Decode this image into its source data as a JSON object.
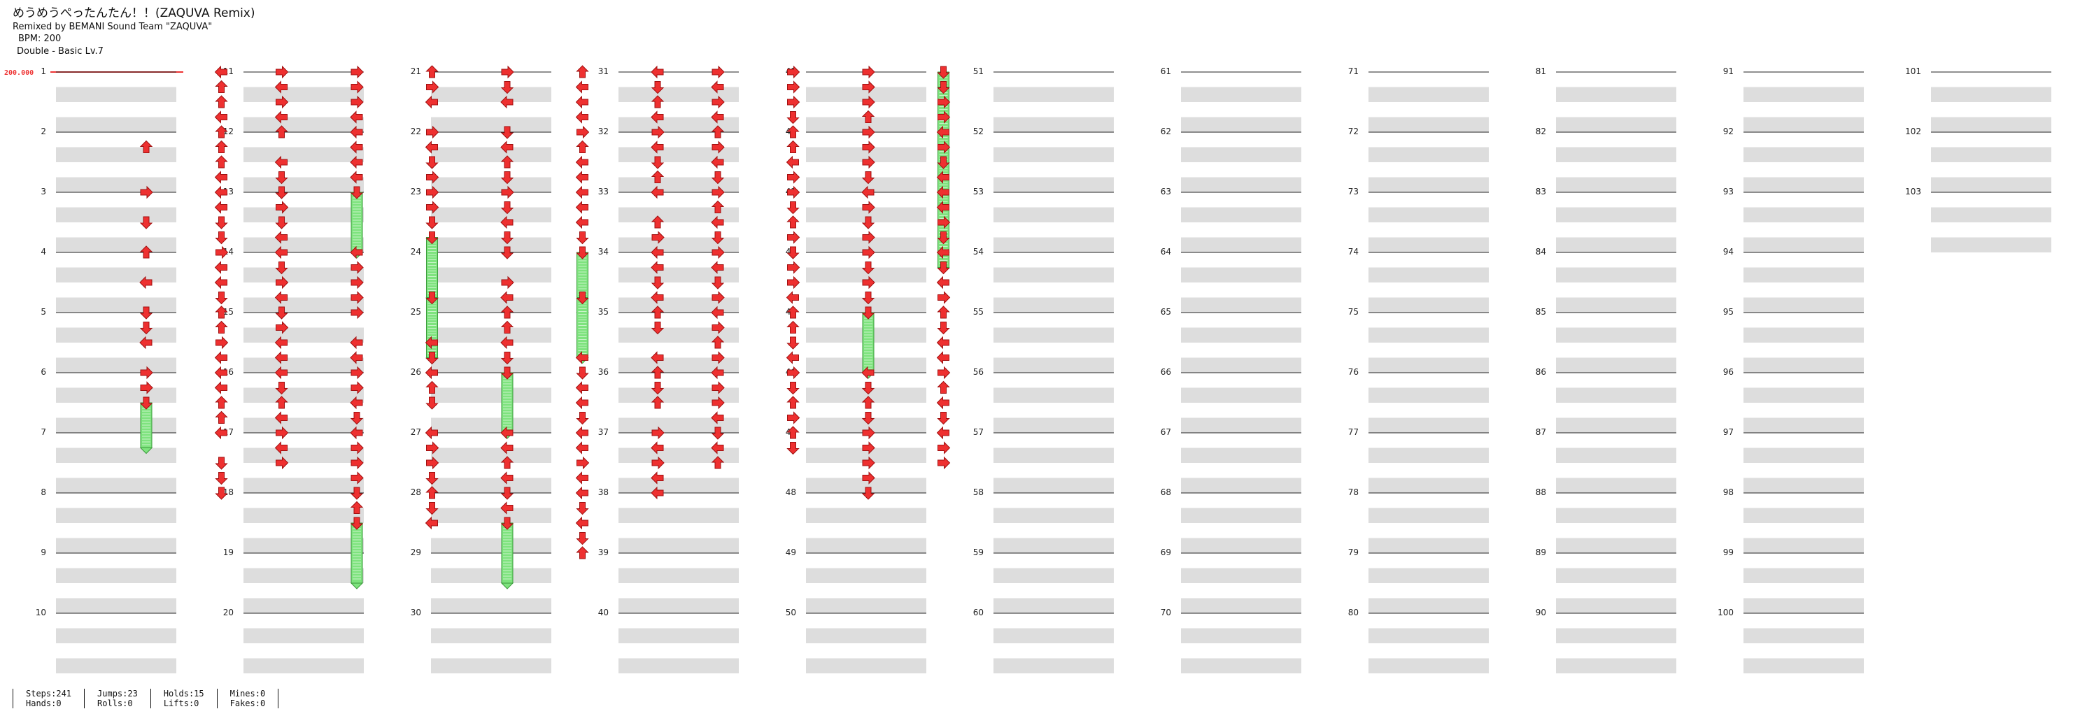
{
  "song": {
    "title": "めうめうぺったんたん！！(ZAQUVA Remix)",
    "artist": "Remixed by BEMANI Sound Team \"ZAQUVA\"",
    "bpm": "BPM: 200",
    "difficulty": "Double - Basic  Lv.7"
  },
  "bpm_marker": "200.000",
  "colors": {
    "arrow": "#ee3030",
    "hold": "#7ee37e",
    "band": "#dddddd"
  },
  "measure_numbers": [
    1,
    2,
    3,
    4,
    5,
    6,
    7,
    8,
    9,
    10,
    11,
    12,
    13,
    14,
    15,
    16,
    17,
    18,
    19,
    20,
    21,
    22,
    23,
    24,
    25,
    26,
    27,
    28,
    29,
    30,
    31,
    32,
    33,
    34,
    35,
    36,
    37,
    38,
    39,
    40,
    41,
    42,
    43,
    44,
    45,
    46,
    47,
    48,
    49,
    50,
    51,
    52,
    53,
    54,
    55,
    56,
    57,
    58,
    59,
    60,
    61,
    62,
    63,
    64,
    65,
    66,
    67,
    68,
    69,
    70,
    71,
    72,
    73,
    74,
    75,
    76,
    77,
    78,
    79,
    80,
    81,
    82,
    83,
    84,
    85,
    86,
    87,
    88,
    89,
    90,
    91,
    92,
    93,
    94,
    95,
    96,
    97,
    98,
    99,
    100,
    101,
    102,
    103
  ],
  "notes": [
    [
      6,
      6,
      "up"
    ],
    [
      6,
      9,
      "right"
    ],
    [
      6,
      11,
      "down"
    ],
    [
      6,
      13,
      "up"
    ],
    [
      6,
      15,
      "left"
    ],
    [
      6,
      17,
      "down"
    ],
    [
      6,
      18,
      "down"
    ],
    [
      6,
      19,
      "left"
    ],
    [
      6,
      21,
      "right"
    ],
    [
      6,
      22,
      "right"
    ],
    [
      6,
      23,
      "hold3"
    ],
    [
      11,
      1,
      "left"
    ],
    [
      11,
      2,
      "up"
    ],
    [
      11,
      3,
      "up"
    ],
    [
      11,
      4,
      "left"
    ],
    [
      11,
      5,
      "up"
    ],
    [
      11,
      6,
      "up"
    ],
    [
      11,
      7,
      "up"
    ],
    [
      11,
      8,
      "left"
    ],
    [
      11,
      9,
      "left"
    ],
    [
      11,
      10,
      "left"
    ],
    [
      11,
      11,
      "down"
    ],
    [
      11,
      12,
      "down"
    ],
    [
      11,
      13,
      "right"
    ],
    [
      11,
      14,
      "left"
    ],
    [
      11,
      15,
      "left"
    ],
    [
      11,
      16,
      "down"
    ],
    [
      11,
      17,
      "up"
    ],
    [
      11,
      18,
      "up"
    ],
    [
      11,
      19,
      "right"
    ],
    [
      11,
      20,
      "left"
    ],
    [
      11,
      21,
      "left"
    ],
    [
      11,
      22,
      "left"
    ],
    [
      11,
      23,
      "up"
    ],
    [
      11,
      24,
      "up"
    ],
    [
      11,
      25,
      "left"
    ],
    [
      11,
      27,
      "down"
    ],
    [
      11,
      28,
      "down"
    ],
    [
      11,
      29,
      "down"
    ],
    [
      15,
      1,
      "right"
    ],
    [
      15,
      2,
      "left"
    ],
    [
      15,
      3,
      "right"
    ],
    [
      15,
      4,
      "left"
    ],
    [
      15,
      5,
      "up"
    ],
    [
      15,
      7,
      "left"
    ],
    [
      15,
      8,
      "down"
    ],
    [
      15,
      9,
      "down"
    ],
    [
      15,
      10,
      "right"
    ],
    [
      15,
      11,
      "down"
    ],
    [
      15,
      12,
      "left"
    ],
    [
      15,
      13,
      "left"
    ],
    [
      15,
      14,
      "down"
    ],
    [
      15,
      15,
      "right"
    ],
    [
      15,
      16,
      "left"
    ],
    [
      15,
      17,
      "down"
    ],
    [
      15,
      18,
      "right"
    ],
    [
      15,
      19,
      "left"
    ],
    [
      15,
      20,
      "left"
    ],
    [
      15,
      21,
      "left"
    ],
    [
      15,
      22,
      "down"
    ],
    [
      15,
      23,
      "up"
    ],
    [
      15,
      24,
      "left"
    ],
    [
      15,
      25,
      "right"
    ],
    [
      15,
      26,
      "left"
    ],
    [
      15,
      27,
      "right"
    ],
    [
      20,
      1,
      "right"
    ],
    [
      20,
      2,
      "right"
    ],
    [
      20,
      3,
      "right"
    ],
    [
      20,
      4,
      "left"
    ],
    [
      20,
      5,
      "left"
    ],
    [
      20,
      6,
      "left"
    ],
    [
      20,
      7,
      "left"
    ],
    [
      20,
      8,
      "left"
    ],
    [
      20,
      9,
      "hold4"
    ],
    [
      20,
      13,
      "left"
    ],
    [
      20,
      14,
      "right"
    ],
    [
      20,
      15,
      "right"
    ],
    [
      20,
      16,
      "right"
    ],
    [
      20,
      17,
      "right"
    ],
    [
      20,
      19,
      "left"
    ],
    [
      20,
      20,
      "left"
    ],
    [
      20,
      21,
      "right"
    ],
    [
      20,
      22,
      "right"
    ],
    [
      20,
      23,
      "left"
    ],
    [
      20,
      24,
      "down"
    ],
    [
      20,
      25,
      "left"
    ],
    [
      20,
      26,
      "right"
    ],
    [
      20,
      27,
      "right"
    ],
    [
      20,
      28,
      "right"
    ],
    [
      20,
      29,
      "down"
    ],
    [
      20,
      30,
      "up"
    ],
    [
      20,
      31,
      "hold4"
    ],
    [
      25,
      1,
      "up"
    ],
    [
      25,
      2,
      "right"
    ],
    [
      25,
      3,
      "left"
    ],
    [
      25,
      5,
      "right"
    ],
    [
      25,
      6,
      "left"
    ],
    [
      25,
      7,
      "down"
    ],
    [
      25,
      8,
      "right"
    ],
    [
      25,
      9,
      "right"
    ],
    [
      25,
      10,
      "right"
    ],
    [
      25,
      11,
      "down"
    ],
    [
      25,
      12,
      "hold4"
    ],
    [
      25,
      16,
      "hold4"
    ],
    [
      25,
      19,
      "left"
    ],
    [
      25,
      20,
      "down"
    ],
    [
      25,
      21,
      "left"
    ],
    [
      25,
      22,
      "up"
    ],
    [
      25,
      23,
      "down"
    ],
    [
      25,
      25,
      "left"
    ],
    [
      25,
      26,
      "right"
    ],
    [
      25,
      27,
      "right"
    ],
    [
      25,
      28,
      "down"
    ],
    [
      25,
      29,
      "up"
    ],
    [
      25,
      30,
      "down"
    ],
    [
      25,
      31,
      "left"
    ],
    [
      30,
      1,
      "right"
    ],
    [
      30,
      2,
      "down"
    ],
    [
      30,
      3,
      "left"
    ],
    [
      30,
      5,
      "down"
    ],
    [
      30,
      6,
      "left"
    ],
    [
      30,
      7,
      "up"
    ],
    [
      30,
      8,
      "down"
    ],
    [
      30,
      9,
      "right"
    ],
    [
      30,
      10,
      "down"
    ],
    [
      30,
      11,
      "left"
    ],
    [
      30,
      12,
      "down"
    ],
    [
      30,
      13,
      "down"
    ],
    [
      30,
      15,
      "right"
    ],
    [
      30,
      16,
      "left"
    ],
    [
      30,
      17,
      "up"
    ],
    [
      30,
      18,
      "up"
    ],
    [
      30,
      19,
      "left"
    ],
    [
      30,
      20,
      "down"
    ],
    [
      30,
      21,
      "hold4"
    ],
    [
      30,
      25,
      "left"
    ],
    [
      30,
      26,
      "left"
    ],
    [
      30,
      27,
      "up"
    ],
    [
      30,
      28,
      "left"
    ],
    [
      30,
      29,
      "down"
    ],
    [
      30,
      30,
      "left"
    ],
    [
      30,
      31,
      "hold4"
    ],
    [
      35,
      1,
      "up"
    ],
    [
      35,
      2,
      "left"
    ],
    [
      35,
      3,
      "left"
    ],
    [
      35,
      4,
      "left"
    ],
    [
      35,
      5,
      "right"
    ],
    [
      35,
      6,
      "up"
    ],
    [
      35,
      7,
      "left"
    ],
    [
      35,
      8,
      "left"
    ],
    [
      35,
      9,
      "left"
    ],
    [
      35,
      10,
      "left"
    ],
    [
      35,
      11,
      "left"
    ],
    [
      35,
      12,
      "down"
    ],
    [
      35,
      13,
      "hold4"
    ],
    [
      35,
      16,
      "hold4"
    ],
    [
      35,
      20,
      "left"
    ],
    [
      35,
      21,
      "down"
    ],
    [
      35,
      22,
      "left"
    ],
    [
      35,
      23,
      "left"
    ],
    [
      35,
      24,
      "down"
    ],
    [
      35,
      25,
      "left"
    ],
    [
      35,
      26,
      "left"
    ],
    [
      35,
      27,
      "right"
    ],
    [
      35,
      28,
      "left"
    ],
    [
      35,
      29,
      "left"
    ],
    [
      35,
      30,
      "down"
    ],
    [
      35,
      31,
      "left"
    ],
    [
      35,
      32,
      "down"
    ],
    [
      35,
      33,
      "up"
    ],
    [
      40,
      1,
      "left"
    ],
    [
      40,
      2,
      "down"
    ],
    [
      40,
      3,
      "up"
    ],
    [
      40,
      4,
      "left"
    ],
    [
      40,
      5,
      "right"
    ],
    [
      40,
      6,
      "left"
    ],
    [
      40,
      7,
      "down"
    ],
    [
      40,
      8,
      "up"
    ],
    [
      40,
      9,
      "left"
    ],
    [
      40,
      11,
      "up"
    ],
    [
      40,
      12,
      "right"
    ],
    [
      40,
      13,
      "left"
    ],
    [
      40,
      14,
      "left"
    ],
    [
      40,
      15,
      "down"
    ],
    [
      40,
      16,
      "left"
    ],
    [
      40,
      17,
      "up"
    ],
    [
      40,
      18,
      "down"
    ],
    [
      40,
      20,
      "left"
    ],
    [
      40,
      21,
      "up"
    ],
    [
      40,
      22,
      "down"
    ],
    [
      40,
      23,
      "up"
    ],
    [
      40,
      25,
      "right"
    ],
    [
      40,
      26,
      "left"
    ],
    [
      40,
      27,
      "right"
    ],
    [
      40,
      28,
      "left"
    ],
    [
      40,
      29,
      "left"
    ],
    [
      44,
      1,
      "right"
    ],
    [
      44,
      2,
      "left"
    ],
    [
      44,
      3,
      "right"
    ],
    [
      44,
      4,
      "left"
    ],
    [
      44,
      5,
      "up"
    ],
    [
      44,
      6,
      "right"
    ],
    [
      44,
      7,
      "left"
    ],
    [
      44,
      8,
      "down"
    ],
    [
      44,
      9,
      "right"
    ],
    [
      44,
      10,
      "up"
    ],
    [
      44,
      11,
      "left"
    ],
    [
      44,
      12,
      "down"
    ],
    [
      44,
      13,
      "right"
    ],
    [
      44,
      14,
      "left"
    ],
    [
      44,
      15,
      "down"
    ],
    [
      44,
      16,
      "right"
    ],
    [
      44,
      17,
      "left"
    ],
    [
      44,
      18,
      "right"
    ],
    [
      44,
      19,
      "up"
    ],
    [
      44,
      20,
      "right"
    ],
    [
      44,
      21,
      "left"
    ],
    [
      44,
      22,
      "right"
    ],
    [
      44,
      23,
      "right"
    ],
    [
      44,
      24,
      "left"
    ],
    [
      44,
      25,
      "down"
    ],
    [
      44,
      26,
      "left"
    ],
    [
      44,
      27,
      "up"
    ],
    [
      49,
      1,
      "right"
    ],
    [
      49,
      2,
      "right"
    ],
    [
      49,
      3,
      "right"
    ],
    [
      49,
      4,
      "down"
    ],
    [
      49,
      5,
      "up"
    ],
    [
      49,
      6,
      "up"
    ],
    [
      49,
      7,
      "left"
    ],
    [
      49,
      8,
      "right"
    ],
    [
      49,
      9,
      "right"
    ],
    [
      49,
      10,
      "down"
    ],
    [
      49,
      11,
      "up"
    ],
    [
      49,
      12,
      "right"
    ],
    [
      49,
      13,
      "down"
    ],
    [
      49,
      14,
      "right"
    ],
    [
      49,
      15,
      "right"
    ],
    [
      49,
      16,
      "left"
    ],
    [
      49,
      17,
      "up"
    ],
    [
      49,
      18,
      "up"
    ],
    [
      49,
      19,
      "down"
    ],
    [
      49,
      20,
      "left"
    ],
    [
      49,
      21,
      "right"
    ],
    [
      49,
      22,
      "down"
    ],
    [
      49,
      23,
      "up"
    ],
    [
      49,
      24,
      "right"
    ],
    [
      49,
      25,
      "up"
    ],
    [
      49,
      26,
      "down"
    ],
    [
      54,
      1,
      "right"
    ],
    [
      54,
      2,
      "right"
    ],
    [
      54,
      3,
      "right"
    ],
    [
      54,
      4,
      "up"
    ],
    [
      54,
      5,
      "right"
    ],
    [
      54,
      6,
      "right"
    ],
    [
      54,
      7,
      "right"
    ],
    [
      54,
      8,
      "down"
    ],
    [
      54,
      9,
      "left"
    ],
    [
      54,
      10,
      "right"
    ],
    [
      54,
      11,
      "down"
    ],
    [
      54,
      12,
      "right"
    ],
    [
      54,
      13,
      "right"
    ],
    [
      54,
      14,
      "down"
    ],
    [
      54,
      15,
      "right"
    ],
    [
      54,
      16,
      "down"
    ],
    [
      54,
      17,
      "hold4"
    ],
    [
      54,
      21,
      "left"
    ],
    [
      54,
      22,
      "down"
    ],
    [
      54,
      23,
      "up"
    ],
    [
      54,
      24,
      "down"
    ],
    [
      54,
      25,
      "right"
    ],
    [
      54,
      26,
      "right"
    ],
    [
      54,
      27,
      "right"
    ],
    [
      54,
      28,
      "right"
    ],
    [
      54,
      29,
      "down"
    ],
    [
      59,
      1,
      "hold12"
    ],
    [
      59,
      2,
      "hold12"
    ],
    [
      59,
      3,
      "right"
    ],
    [
      59,
      4,
      "right"
    ],
    [
      59,
      5,
      "left"
    ],
    [
      59,
      6,
      "right"
    ],
    [
      59,
      7,
      "down"
    ],
    [
      59,
      8,
      "left"
    ],
    [
      59,
      9,
      "left"
    ],
    [
      59,
      10,
      "left"
    ],
    [
      59,
      11,
      "right"
    ],
    [
      59,
      12,
      "down"
    ],
    [
      59,
      13,
      "left"
    ],
    [
      59,
      14,
      "down"
    ],
    [
      59,
      15,
      "left"
    ],
    [
      59,
      16,
      "right"
    ],
    [
      59,
      17,
      "up"
    ],
    [
      59,
      18,
      "down"
    ],
    [
      59,
      19,
      "left"
    ],
    [
      59,
      20,
      "left"
    ],
    [
      59,
      21,
      "right"
    ],
    [
      59,
      22,
      "up"
    ],
    [
      59,
      23,
      "left"
    ],
    [
      59,
      24,
      "down"
    ],
    [
      59,
      25,
      "left"
    ],
    [
      59,
      26,
      "right"
    ],
    [
      59,
      27,
      "right"
    ]
  ],
  "stats": [
    {
      "a": "Steps:241",
      "b": "Hands:0"
    },
    {
      "a": "Jumps:23",
      "b": "Rolls:0"
    },
    {
      "a": "Holds:15",
      "b": "Lifts:0"
    },
    {
      "a": "Mines:0",
      "b": "Fakes:0"
    }
  ]
}
